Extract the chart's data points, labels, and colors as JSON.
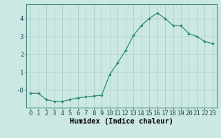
{
  "x": [
    0,
    1,
    2,
    3,
    4,
    5,
    6,
    7,
    8,
    9,
    10,
    11,
    12,
    13,
    14,
    15,
    16,
    17,
    18,
    19,
    20,
    21,
    22,
    23
  ],
  "y": [
    -0.2,
    -0.2,
    -0.55,
    -0.65,
    -0.65,
    -0.55,
    -0.45,
    -0.4,
    -0.35,
    -0.3,
    0.85,
    1.5,
    2.2,
    3.05,
    3.6,
    4.0,
    4.3,
    4.0,
    3.6,
    3.6,
    3.15,
    3.0,
    2.7,
    2.6
  ],
  "line_color": "#2e8b77",
  "marker": "D",
  "marker_size": 2.0,
  "bg_color": "#cce8e4",
  "grid_color": "#aacfcb",
  "xlabel": "Humidex (Indice chaleur)",
  "xlim": [
    -0.5,
    23.5
  ],
  "ylim": [
    -1.0,
    4.8
  ],
  "yticks": [
    0,
    1,
    2,
    3,
    4
  ],
  "ytick_labels": [
    "-0",
    "1",
    "2",
    "3",
    "4"
  ],
  "xticks": [
    0,
    1,
    2,
    3,
    4,
    5,
    6,
    7,
    8,
    9,
    10,
    11,
    12,
    13,
    14,
    15,
    16,
    17,
    18,
    19,
    20,
    21,
    22,
    23
  ],
  "tick_fontsize": 6.5,
  "xlabel_fontsize": 7.5
}
